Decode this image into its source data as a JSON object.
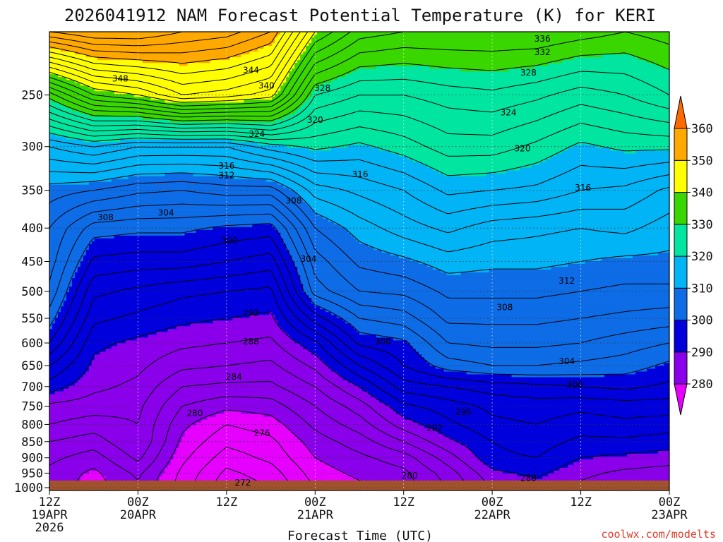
{
  "chart_data": {
    "type": "heatmap",
    "title": "2026041912 NAM Forecast Potential Temperature (K) for KERI",
    "xlabel": "Forecast Time (UTC)",
    "ylabel": "",
    "credit": "coolwx.com/modelts",
    "y_axis": {
      "scale": "log",
      "reversed": true,
      "ylim": [
        1010,
        200
      ],
      "ticks": [
        250,
        300,
        350,
        400,
        450,
        500,
        550,
        600,
        650,
        700,
        750,
        800,
        850,
        900,
        950,
        1000
      ]
    },
    "x_axis": {
      "unit": "hours",
      "xlim": [
        0,
        84
      ],
      "ticks": [
        {
          "h": 0,
          "l1": "12Z",
          "l2": "19APR",
          "l3": "2026"
        },
        {
          "h": 12,
          "l1": "00Z",
          "l2": "20APR",
          "l3": ""
        },
        {
          "h": 24,
          "l1": "12Z",
          "l2": "",
          "l3": ""
        },
        {
          "h": 36,
          "l1": "00Z",
          "l2": "21APR",
          "l3": ""
        },
        {
          "h": 48,
          "l1": "12Z",
          "l2": "",
          "l3": ""
        },
        {
          "h": 60,
          "l1": "00Z",
          "l2": "22APR",
          "l3": ""
        },
        {
          "h": 72,
          "l1": "12Z",
          "l2": "",
          "l3": ""
        },
        {
          "h": 84,
          "l1": "00Z",
          "l2": "23APR",
          "l3": ""
        }
      ]
    },
    "grid": "dotted",
    "surface_pressure": 975,
    "colorbar": {
      "levels": [
        280,
        290,
        300,
        310,
        320,
        330,
        340,
        350,
        360
      ],
      "colors": [
        "#e600ff",
        "#8a00ea",
        "#0000dc",
        "#0d6ce6",
        "#00b4f5",
        "#00e6a0",
        "#3ad600",
        "#ffff00",
        "#ffa800",
        "#ff6a00"
      ]
    },
    "contour_interval": 2,
    "theta_columns": [
      {
        "h": 0,
        "p": [
          1000,
          950,
          900,
          850,
          800,
          750,
          700,
          650,
          600,
          550,
          500,
          450,
          400,
          350,
          300,
          250,
          200
        ],
        "t": [
          281,
          281.5,
          282.5,
          284,
          286,
          287.5,
          291,
          294,
          298,
          301,
          303.5,
          305,
          306,
          309,
          316,
          331,
          356
        ]
      },
      {
        "h": 6,
        "p": [
          1000,
          950,
          900,
          850,
          800,
          750,
          700,
          650,
          600,
          550,
          500,
          450,
          400,
          350,
          300,
          250,
          200
        ],
        "t": [
          279,
          279.5,
          281,
          283,
          285,
          287,
          288.5,
          289.5,
          290.5,
          292.5,
          294.5,
          297.5,
          301,
          308,
          318,
          338,
          358
        ]
      },
      {
        "h": 12,
        "p": [
          1000,
          950,
          900,
          850,
          800,
          750,
          700,
          650,
          600,
          550,
          500,
          450,
          400,
          350,
          300,
          250,
          200
        ],
        "t": [
          281.5,
          282.5,
          284.5,
          286,
          286,
          286.5,
          287.5,
          288.5,
          289.5,
          291.5,
          293.5,
          297,
          300.5,
          306.5,
          316,
          340,
          358
        ]
      },
      {
        "h": 18,
        "p": [
          1000,
          950,
          900,
          850,
          800,
          750,
          700,
          650,
          600,
          550,
          500,
          450,
          400,
          350,
          300,
          250,
          200
        ],
        "t": [
          277,
          277.5,
          278.5,
          279.5,
          280.5,
          282,
          284,
          286.5,
          288.5,
          290.5,
          292.5,
          297,
          300.5,
          306,
          316,
          344,
          356
        ]
      },
      {
        "h": 24,
        "p": [
          1000,
          950,
          900,
          850,
          800,
          750,
          700,
          650,
          600,
          550,
          500,
          450,
          400,
          350,
          300,
          250,
          200
        ],
        "t": [
          272.5,
          273.5,
          275,
          276.5,
          278,
          280.5,
          283.5,
          286,
          288,
          290,
          292,
          296,
          299.5,
          307,
          316,
          343,
          355
        ]
      },
      {
        "h": 30,
        "p": [
          1000,
          950,
          900,
          850,
          800,
          750,
          700,
          650,
          600,
          550,
          500,
          450,
          400,
          350,
          300,
          250,
          200
        ],
        "t": [
          274,
          275,
          276.5,
          277.5,
          279,
          281,
          283.5,
          285.5,
          287.5,
          289.5,
          291.5,
          295,
          299,
          307,
          319,
          341,
          352
        ]
      },
      {
        "h": 36,
        "p": [
          1000,
          950,
          900,
          850,
          800,
          750,
          700,
          650,
          600,
          550,
          500,
          450,
          400,
          350,
          300,
          250,
          200
        ],
        "t": [
          278,
          279,
          280,
          281,
          282.5,
          284,
          286,
          288.5,
          291.5,
          297,
          303,
          305,
          308,
          313,
          320.5,
          328,
          340
        ]
      },
      {
        "h": 42,
        "p": [
          1000,
          950,
          900,
          850,
          800,
          750,
          700,
          650,
          600,
          550,
          500,
          450,
          400,
          350,
          300,
          250,
          200
        ],
        "t": [
          279.5,
          280.5,
          281.5,
          283,
          285,
          287,
          290,
          294,
          298.5,
          302,
          306,
          308.5,
          311,
          314.5,
          319.5,
          326,
          335
        ]
      },
      {
        "h": 48,
        "p": [
          1000,
          950,
          900,
          850,
          800,
          750,
          700,
          650,
          600,
          550,
          500,
          450,
          400,
          350,
          300,
          250,
          200
        ],
        "t": [
          281,
          281.5,
          283,
          286,
          289,
          291.5,
          295,
          298,
          299.5,
          303,
          306.5,
          309.5,
          313,
          316,
          321,
          326,
          334
        ]
      },
      {
        "h": 54,
        "p": [
          1000,
          950,
          900,
          850,
          800,
          750,
          700,
          650,
          600,
          550,
          500,
          450,
          400,
          350,
          300,
          250,
          200
        ],
        "t": [
          284,
          285,
          287,
          289.5,
          291.5,
          293,
          296,
          301,
          304,
          306.5,
          308.5,
          311,
          314.5,
          318.5,
          323,
          327,
          334
        ]
      },
      {
        "h": 60,
        "p": [
          1000,
          950,
          900,
          850,
          800,
          750,
          700,
          650,
          600,
          550,
          500,
          450,
          400,
          350,
          300,
          250,
          200
        ],
        "t": [
          288,
          289.5,
          291.5,
          292,
          293.5,
          294.5,
          297,
          302,
          304.5,
          306.5,
          308.5,
          310.5,
          313,
          318,
          323,
          327.5,
          334
        ]
      },
      {
        "h": 66,
        "p": [
          1000,
          950,
          900,
          850,
          800,
          750,
          700,
          650,
          600,
          550,
          500,
          450,
          400,
          350,
          300,
          250,
          200
        ],
        "t": [
          289,
          290.5,
          292,
          293,
          294,
          295,
          297.5,
          302,
          304.5,
          306.5,
          308.5,
          310.5,
          312.5,
          317.5,
          321.5,
          326.5,
          334
        ]
      },
      {
        "h": 72,
        "p": [
          1000,
          950,
          900,
          850,
          800,
          750,
          700,
          650,
          600,
          550,
          500,
          450,
          400,
          350,
          300,
          250,
          200
        ],
        "t": [
          287.5,
          288.5,
          290,
          291.5,
          293,
          294.5,
          298,
          301.5,
          304,
          306,
          308,
          310,
          312,
          316,
          319.5,
          325,
          333
        ]
      },
      {
        "h": 78,
        "p": [
          1000,
          950,
          900,
          850,
          800,
          750,
          700,
          650,
          600,
          550,
          500,
          450,
          400,
          350,
          300,
          250,
          200
        ],
        "t": [
          286.5,
          287.5,
          289.5,
          291.5,
          293.5,
          295,
          298.5,
          301,
          303,
          305.5,
          307.5,
          309.5,
          312.5,
          315.5,
          320.5,
          326,
          332
        ]
      },
      {
        "h": 84,
        "p": [
          1000,
          950,
          900,
          850,
          800,
          750,
          700,
          650,
          600,
          550,
          500,
          450,
          400,
          350,
          300,
          250,
          200
        ],
        "t": [
          286,
          287,
          289,
          291,
          293,
          295,
          297.5,
          299.5,
          302,
          305,
          307.5,
          309.5,
          311,
          313.5,
          320.5,
          328,
          333
        ]
      }
    ],
    "contour_labels": [
      {
        "text": "348",
        "h": 9.6,
        "p": 236
      },
      {
        "text": "344",
        "h": 27.3,
        "p": 229
      },
      {
        "text": "340",
        "h": 29.4,
        "p": 242
      },
      {
        "text": "328",
        "h": 37.0,
        "p": 244
      },
      {
        "text": "336",
        "h": 66.8,
        "p": 205
      },
      {
        "text": "332",
        "h": 66.8,
        "p": 215
      },
      {
        "text": "328",
        "h": 64.9,
        "p": 231
      },
      {
        "text": "324",
        "h": 62.2,
        "p": 266
      },
      {
        "text": "320",
        "h": 36.0,
        "p": 273
      },
      {
        "text": "324",
        "h": 28.1,
        "p": 287
      },
      {
        "text": "320",
        "h": 64.1,
        "p": 302
      },
      {
        "text": "316",
        "h": 24.0,
        "p": 321
      },
      {
        "text": "312",
        "h": 24.0,
        "p": 332
      },
      {
        "text": "316",
        "h": 42.1,
        "p": 331
      },
      {
        "text": "316",
        "h": 72.3,
        "p": 347
      },
      {
        "text": "308",
        "h": 33.1,
        "p": 363
      },
      {
        "text": "304",
        "h": 15.8,
        "p": 379
      },
      {
        "text": "308",
        "h": 7.6,
        "p": 385
      },
      {
        "text": "300",
        "h": 24.4,
        "p": 418
      },
      {
        "text": "304",
        "h": 35.1,
        "p": 446
      },
      {
        "text": "312",
        "h": 70.1,
        "p": 482
      },
      {
        "text": "308",
        "h": 61.7,
        "p": 529
      },
      {
        "text": "292",
        "h": 27.3,
        "p": 540
      },
      {
        "text": "300",
        "h": 45.2,
        "p": 597
      },
      {
        "text": "288",
        "h": 27.3,
        "p": 597
      },
      {
        "text": "304",
        "h": 70.1,
        "p": 640
      },
      {
        "text": "284",
        "h": 25.0,
        "p": 676
      },
      {
        "text": "300",
        "h": 71.2,
        "p": 695
      },
      {
        "text": "296",
        "h": 56.1,
        "p": 766
      },
      {
        "text": "280",
        "h": 19.7,
        "p": 769
      },
      {
        "text": "292",
        "h": 52.2,
        "p": 810
      },
      {
        "text": "276",
        "h": 28.8,
        "p": 824
      },
      {
        "text": "280",
        "h": 48.8,
        "p": 958
      },
      {
        "text": "288",
        "h": 64.9,
        "p": 967
      },
      {
        "text": "272",
        "h": 26.2,
        "p": 983
      }
    ]
  }
}
